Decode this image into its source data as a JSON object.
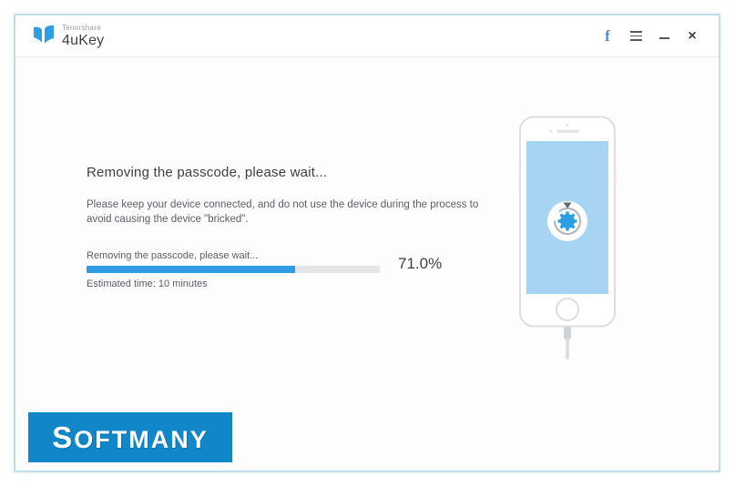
{
  "header": {
    "brand_small": "Tenorshare",
    "brand_product": "4uKey"
  },
  "window_controls": {
    "facebook_label": "f",
    "close_label": "×"
  },
  "main": {
    "heading": "Removing the passcode, please wait...",
    "description_line1": "Please keep your device connected, and do not use the device during the process to",
    "description_line2": "avoid causing the device \"bricked\".",
    "progress": {
      "label": "Removing the passcode, please wait...",
      "percent": 71,
      "percent_label": "71.0%",
      "estimated_time": "Estimated time: 10 minutes"
    }
  },
  "watermark": {
    "text": "SOFTMANY"
  },
  "colors": {
    "accent_blue": "#2f9be3",
    "progress_track": "#e4e5e6",
    "window_border": "#c3dcec",
    "phone_screen": "#a8d4f4",
    "watermark_bg": "#1187ca"
  }
}
